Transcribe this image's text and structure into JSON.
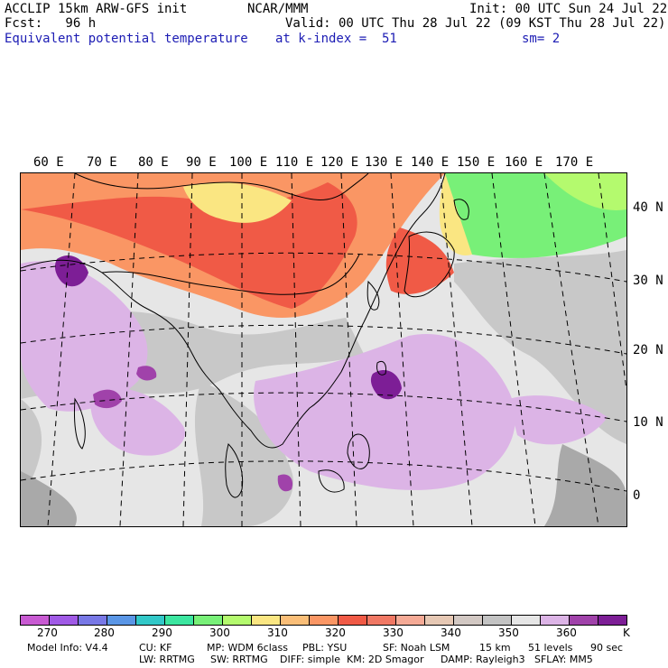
{
  "header": {
    "left_line1": "ACCLIP 15km ARW-GFS init",
    "left_line2": "Fcst:   96 h",
    "left_line3": "Equivalent potential temperature",
    "center_line1": "NCAR/MMM",
    "center_line3": "at k-index =  51",
    "right_line1": "Init: 00 UTC Sun 24 Jul 22",
    "right_line2": "Valid: 00 UTC Thu 28 Jul 22 (09 KST Thu 28 Jul 22)",
    "right_line3": "sm= 2"
  },
  "map": {
    "longitude_labels": [
      "60 E",
      "70 E",
      "80 E",
      "90 E",
      "100 E",
      "110 E",
      "120 E",
      "130 E",
      "140 E",
      "150 E",
      "160 E",
      "170 E"
    ],
    "latitude_labels": [
      "40 N",
      "30 N",
      "20 N",
      "10 N",
      "0"
    ],
    "colors": {
      "land_gray": "#c8c8c8",
      "dark_gray": "#a9a9a9",
      "light_gray": "#e6e6e6",
      "lavender": "#dcb4e6",
      "purple": "#7d1e96",
      "orange": "#fa9664",
      "red_orange": "#f05a46",
      "yellow": "#fae682",
      "green": "#78f078"
    }
  },
  "colorbar": {
    "colors": [
      "#c85ad2",
      "#a05ae6",
      "#7878e6",
      "#5a96e6",
      "#32c8c8",
      "#3ce6a0",
      "#78f078",
      "#b4fa6e",
      "#fae682",
      "#fabe78",
      "#fa9664",
      "#f05a46",
      "#f07864",
      "#f5aa96",
      "#e6c8b4",
      "#d2c8c3",
      "#c3c3c3",
      "#e6e6e6",
      "#dcb4e6",
      "#a042aa",
      "#7d1e96"
    ],
    "tick_labels": [
      "270",
      "280",
      "290",
      "300",
      "310",
      "320",
      "330",
      "340",
      "350",
      "360"
    ],
    "unit": "K"
  },
  "model_info": {
    "line1": [
      "Model Info: V4.4",
      "CU: KF",
      "MP: WDM 6class",
      "PBL: YSU",
      "SF: Noah LSM",
      "15 km",
      "51 levels",
      "90 sec"
    ],
    "line2": [
      "LW: RRTMG",
      "SW: RRTMG",
      "DIFF: simple",
      "KM: 2D Smagor",
      "DAMP: Rayleigh3",
      "SFLAY: MM5"
    ]
  }
}
